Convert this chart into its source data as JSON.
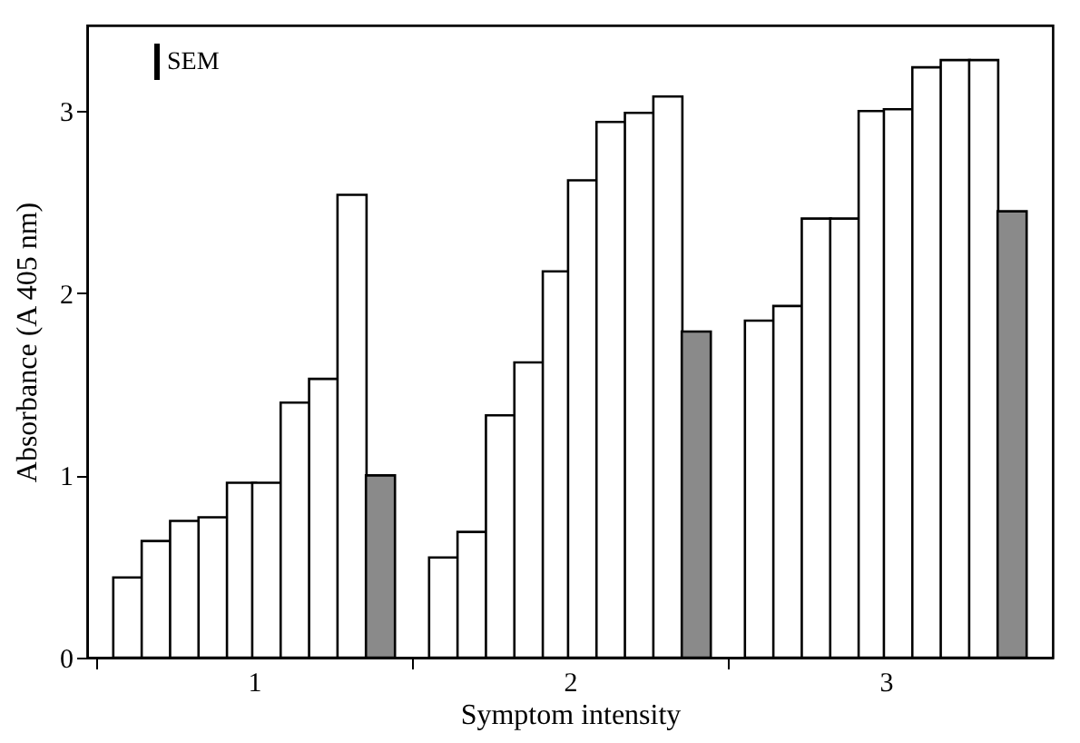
{
  "chart_data": {
    "type": "bar",
    "xlabel": "Symptom intensity",
    "ylabel": "Absorbance (A 405 nm)",
    "annotations": [
      "SEM"
    ],
    "xlim": [
      0.5,
      3.5
    ],
    "xticks": [
      {
        "value": 0.5,
        "label": null
      },
      1,
      {
        "value": 1.5,
        "label": null
      },
      2,
      {
        "value": 2.5,
        "label": null
      },
      3
    ],
    "ylim": [
      0,
      3.47
    ],
    "yticks": [
      0,
      1,
      2,
      3
    ],
    "series": [
      {
        "color": "#ffffff",
        "x": [
          0.6,
          0.69,
          0.78,
          0.87,
          0.96,
          1.04,
          1.13,
          1.22,
          1.31,
          1.6,
          1.69,
          1.78,
          1.87,
          1.96,
          2.04,
          2.13,
          2.22,
          2.31,
          2.6,
          2.69,
          2.78,
          2.87,
          2.96,
          3.04,
          3.13,
          3.22,
          3.31
        ],
        "values": [
          0.44,
          0.64,
          0.75,
          0.77,
          0.96,
          0.96,
          1.4,
          1.53,
          2.54,
          0.55,
          0.69,
          1.33,
          1.62,
          2.12,
          2.62,
          2.94,
          2.99,
          3.08,
          1.85,
          1.93,
          2.41,
          2.41,
          3.0,
          3.01,
          3.24,
          3.28,
          3.28
        ]
      },
      {
        "color": "#8a8a8a",
        "x": [
          1.4,
          2.4,
          3.4
        ],
        "values": [
          1.0,
          1.79,
          2.45
        ]
      }
    ]
  }
}
